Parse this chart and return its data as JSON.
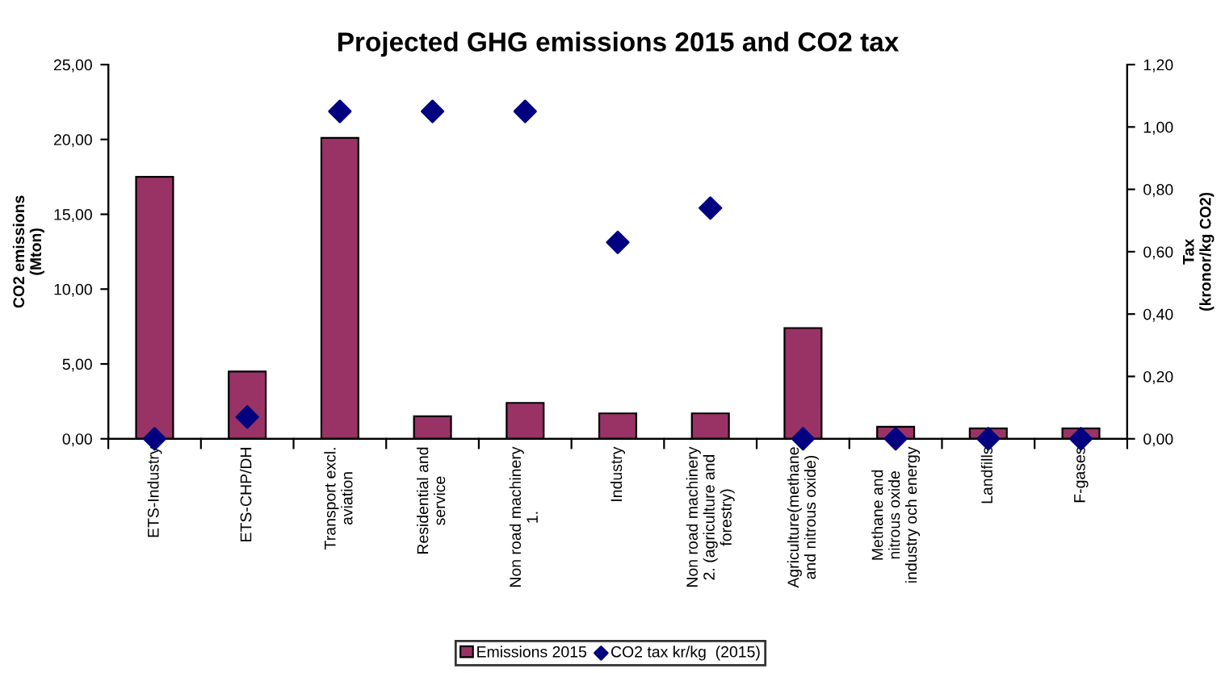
{
  "chart_data": {
    "type": "bar",
    "title": "Projected GHG emissions 2015 and CO2 tax",
    "categories": [
      "ETS-Industry",
      "ETS-CHP/DH",
      "Transport excl.\naviation",
      "Residential and\nservice",
      "Non road machinery\n1.",
      "Industry",
      "Non road machinery\n2. (agriculture and\nforestry)",
      "Agriculture(methane\nand nitrous oxide)",
      "Methane and\nnitrous oxide\nindustry och energy",
      "Landfills",
      "F-gases"
    ],
    "series": [
      {
        "name": "Emissions 2015",
        "color": "#993366",
        "values": [
          17.5,
          4.5,
          20.1,
          1.5,
          2.4,
          1.7,
          1.7,
          7.4,
          0.8,
          0.7,
          0.7
        ]
      },
      {
        "name": "CO2 tax kr/kg  (2015)",
        "type": "scatter",
        "axis": "y2",
        "color": "#000080",
        "marker": "diamond",
        "values": [
          0.0,
          0.07,
          1.05,
          1.05,
          1.05,
          0.63,
          0.74,
          0.0,
          0.0,
          0.0,
          0.0
        ]
      }
    ],
    "ylabel": "CO2 emissions\n(Mton)",
    "y2label": "Tax\n(kronor/kg CO2)",
    "ylim": [
      0,
      25
    ],
    "yticks": [
      {
        "value": 0,
        "label": "0,00"
      },
      {
        "value": 5,
        "label": "5,00"
      },
      {
        "value": 10,
        "label": "10,00"
      },
      {
        "value": 15,
        "label": "15,00"
      },
      {
        "value": 20,
        "label": "20,00"
      },
      {
        "value": 25,
        "label": "25,00"
      }
    ],
    "y2lim": [
      0,
      1.2
    ],
    "y2ticks": [
      {
        "value": 0,
        "label": "0,00"
      },
      {
        "value": 0.2,
        "label": "0,20"
      },
      {
        "value": 0.4,
        "label": "0,40"
      },
      {
        "value": 0.6,
        "label": "0,60"
      },
      {
        "value": 0.8,
        "label": "0,80"
      },
      {
        "value": 1.0,
        "label": "1,00"
      },
      {
        "value": 1.2,
        "label": "1,20"
      }
    ],
    "legend": "bottom",
    "grid": false
  }
}
